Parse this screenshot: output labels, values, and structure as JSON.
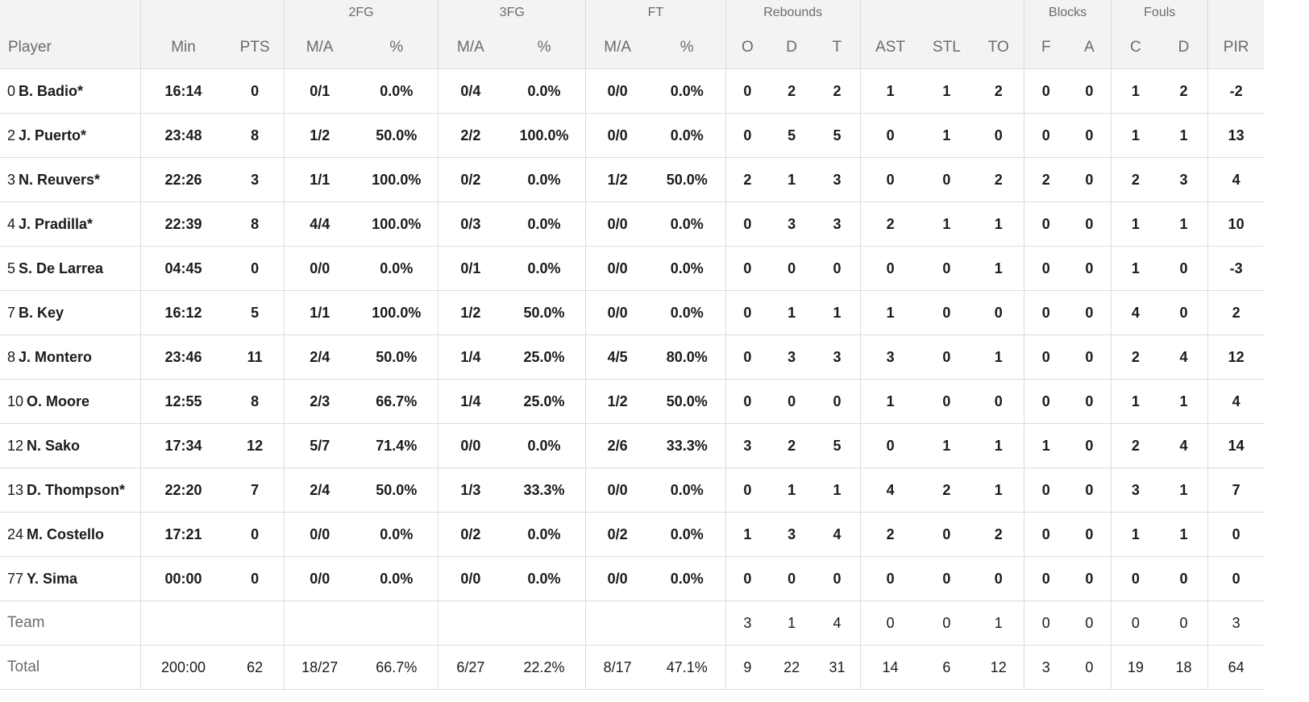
{
  "groups": {
    "fg2": "2FG",
    "fg3": "3FG",
    "ft": "FT",
    "rebounds": "Rebounds",
    "blocks": "Blocks",
    "fouls": "Fouls"
  },
  "columns": {
    "player": "Player",
    "min": "Min",
    "pts": "PTS",
    "fg2_ma": "M/A",
    "fg2_pct": "%",
    "fg3_ma": "M/A",
    "fg3_pct": "%",
    "ft_ma": "M/A",
    "ft_pct": "%",
    "reb_o": "O",
    "reb_d": "D",
    "reb_t": "T",
    "ast": "AST",
    "stl": "STL",
    "to": "TO",
    "blk_f": "F",
    "blk_a": "A",
    "foul_c": "C",
    "foul_d": "D",
    "pir": "PIR"
  },
  "rows": [
    {
      "num": "0",
      "name": "B. Badio*",
      "min": "16:14",
      "pts": "0",
      "fg2_ma": "0/1",
      "fg2_pct": "0.0%",
      "fg3_ma": "0/4",
      "fg3_pct": "0.0%",
      "ft_ma": "0/0",
      "ft_pct": "0.0%",
      "reb_o": "0",
      "reb_d": "2",
      "reb_t": "2",
      "ast": "1",
      "stl": "1",
      "to": "2",
      "blk_f": "0",
      "blk_a": "0",
      "foul_c": "1",
      "foul_d": "2",
      "pir": "-2"
    },
    {
      "num": "2",
      "name": "J. Puerto*",
      "min": "23:48",
      "pts": "8",
      "fg2_ma": "1/2",
      "fg2_pct": "50.0%",
      "fg3_ma": "2/2",
      "fg3_pct": "100.0%",
      "ft_ma": "0/0",
      "ft_pct": "0.0%",
      "reb_o": "0",
      "reb_d": "5",
      "reb_t": "5",
      "ast": "0",
      "stl": "1",
      "to": "0",
      "blk_f": "0",
      "blk_a": "0",
      "foul_c": "1",
      "foul_d": "1",
      "pir": "13"
    },
    {
      "num": "3",
      "name": "N. Reuvers*",
      "min": "22:26",
      "pts": "3",
      "fg2_ma": "1/1",
      "fg2_pct": "100.0%",
      "fg3_ma": "0/2",
      "fg3_pct": "0.0%",
      "ft_ma": "1/2",
      "ft_pct": "50.0%",
      "reb_o": "2",
      "reb_d": "1",
      "reb_t": "3",
      "ast": "0",
      "stl": "0",
      "to": "2",
      "blk_f": "2",
      "blk_a": "0",
      "foul_c": "2",
      "foul_d": "3",
      "pir": "4"
    },
    {
      "num": "4",
      "name": "J. Pradilla*",
      "min": "22:39",
      "pts": "8",
      "fg2_ma": "4/4",
      "fg2_pct": "100.0%",
      "fg3_ma": "0/3",
      "fg3_pct": "0.0%",
      "ft_ma": "0/0",
      "ft_pct": "0.0%",
      "reb_o": "0",
      "reb_d": "3",
      "reb_t": "3",
      "ast": "2",
      "stl": "1",
      "to": "1",
      "blk_f": "0",
      "blk_a": "0",
      "foul_c": "1",
      "foul_d": "1",
      "pir": "10"
    },
    {
      "num": "5",
      "name": "S. De Larrea",
      "min": "04:45",
      "pts": "0",
      "fg2_ma": "0/0",
      "fg2_pct": "0.0%",
      "fg3_ma": "0/1",
      "fg3_pct": "0.0%",
      "ft_ma": "0/0",
      "ft_pct": "0.0%",
      "reb_o": "0",
      "reb_d": "0",
      "reb_t": "0",
      "ast": "0",
      "stl": "0",
      "to": "1",
      "blk_f": "0",
      "blk_a": "0",
      "foul_c": "1",
      "foul_d": "0",
      "pir": "-3"
    },
    {
      "num": "7",
      "name": "B. Key",
      "min": "16:12",
      "pts": "5",
      "fg2_ma": "1/1",
      "fg2_pct": "100.0%",
      "fg3_ma": "1/2",
      "fg3_pct": "50.0%",
      "ft_ma": "0/0",
      "ft_pct": "0.0%",
      "reb_o": "0",
      "reb_d": "1",
      "reb_t": "1",
      "ast": "1",
      "stl": "0",
      "to": "0",
      "blk_f": "0",
      "blk_a": "0",
      "foul_c": "4",
      "foul_d": "0",
      "pir": "2"
    },
    {
      "num": "8",
      "name": "J. Montero",
      "min": "23:46",
      "pts": "11",
      "fg2_ma": "2/4",
      "fg2_pct": "50.0%",
      "fg3_ma": "1/4",
      "fg3_pct": "25.0%",
      "ft_ma": "4/5",
      "ft_pct": "80.0%",
      "reb_o": "0",
      "reb_d": "3",
      "reb_t": "3",
      "ast": "3",
      "stl": "0",
      "to": "1",
      "blk_f": "0",
      "blk_a": "0",
      "foul_c": "2",
      "foul_d": "4",
      "pir": "12"
    },
    {
      "num": "10",
      "name": "O. Moore",
      "min": "12:55",
      "pts": "8",
      "fg2_ma": "2/3",
      "fg2_pct": "66.7%",
      "fg3_ma": "1/4",
      "fg3_pct": "25.0%",
      "ft_ma": "1/2",
      "ft_pct": "50.0%",
      "reb_o": "0",
      "reb_d": "0",
      "reb_t": "0",
      "ast": "1",
      "stl": "0",
      "to": "0",
      "blk_f": "0",
      "blk_a": "0",
      "foul_c": "1",
      "foul_d": "1",
      "pir": "4"
    },
    {
      "num": "12",
      "name": "N. Sako",
      "min": "17:34",
      "pts": "12",
      "fg2_ma": "5/7",
      "fg2_pct": "71.4%",
      "fg3_ma": "0/0",
      "fg3_pct": "0.0%",
      "ft_ma": "2/6",
      "ft_pct": "33.3%",
      "reb_o": "3",
      "reb_d": "2",
      "reb_t": "5",
      "ast": "0",
      "stl": "1",
      "to": "1",
      "blk_f": "1",
      "blk_a": "0",
      "foul_c": "2",
      "foul_d": "4",
      "pir": "14"
    },
    {
      "num": "13",
      "name": "D. Thompson*",
      "min": "22:20",
      "pts": "7",
      "fg2_ma": "2/4",
      "fg2_pct": "50.0%",
      "fg3_ma": "1/3",
      "fg3_pct": "33.3%",
      "ft_ma": "0/0",
      "ft_pct": "0.0%",
      "reb_o": "0",
      "reb_d": "1",
      "reb_t": "1",
      "ast": "4",
      "stl": "2",
      "to": "1",
      "blk_f": "0",
      "blk_a": "0",
      "foul_c": "3",
      "foul_d": "1",
      "pir": "7"
    },
    {
      "num": "24",
      "name": "M. Costello",
      "min": "17:21",
      "pts": "0",
      "fg2_ma": "0/0",
      "fg2_pct": "0.0%",
      "fg3_ma": "0/2",
      "fg3_pct": "0.0%",
      "ft_ma": "0/2",
      "ft_pct": "0.0%",
      "reb_o": "1",
      "reb_d": "3",
      "reb_t": "4",
      "ast": "2",
      "stl": "0",
      "to": "2",
      "blk_f": "0",
      "blk_a": "0",
      "foul_c": "1",
      "foul_d": "1",
      "pir": "0"
    },
    {
      "num": "77",
      "name": "Y. Sima",
      "min": "00:00",
      "pts": "0",
      "fg2_ma": "0/0",
      "fg2_pct": "0.0%",
      "fg3_ma": "0/0",
      "fg3_pct": "0.0%",
      "ft_ma": "0/0",
      "ft_pct": "0.0%",
      "reb_o": "0",
      "reb_d": "0",
      "reb_t": "0",
      "ast": "0",
      "stl": "0",
      "to": "0",
      "blk_f": "0",
      "blk_a": "0",
      "foul_c": "0",
      "foul_d": "0",
      "pir": "0"
    }
  ],
  "team_row": {
    "name": "Team",
    "min": "",
    "pts": "",
    "fg2_ma": "",
    "fg2_pct": "",
    "fg3_ma": "",
    "fg3_pct": "",
    "ft_ma": "",
    "ft_pct": "",
    "reb_o": "3",
    "reb_d": "1",
    "reb_t": "4",
    "ast": "0",
    "stl": "0",
    "to": "1",
    "blk_f": "0",
    "blk_a": "0",
    "foul_c": "0",
    "foul_d": "0",
    "pir": "3"
  },
  "total_row": {
    "name": "Total",
    "min": "200:00",
    "pts": "62",
    "fg2_ma": "18/27",
    "fg2_pct": "66.7%",
    "fg3_ma": "6/27",
    "fg3_pct": "22.2%",
    "ft_ma": "8/17",
    "ft_pct": "47.1%",
    "reb_o": "9",
    "reb_d": "22",
    "reb_t": "31",
    "ast": "14",
    "stl": "6",
    "to": "12",
    "blk_f": "3",
    "blk_a": "0",
    "foul_c": "19",
    "foul_d": "18",
    "pir": "64"
  }
}
